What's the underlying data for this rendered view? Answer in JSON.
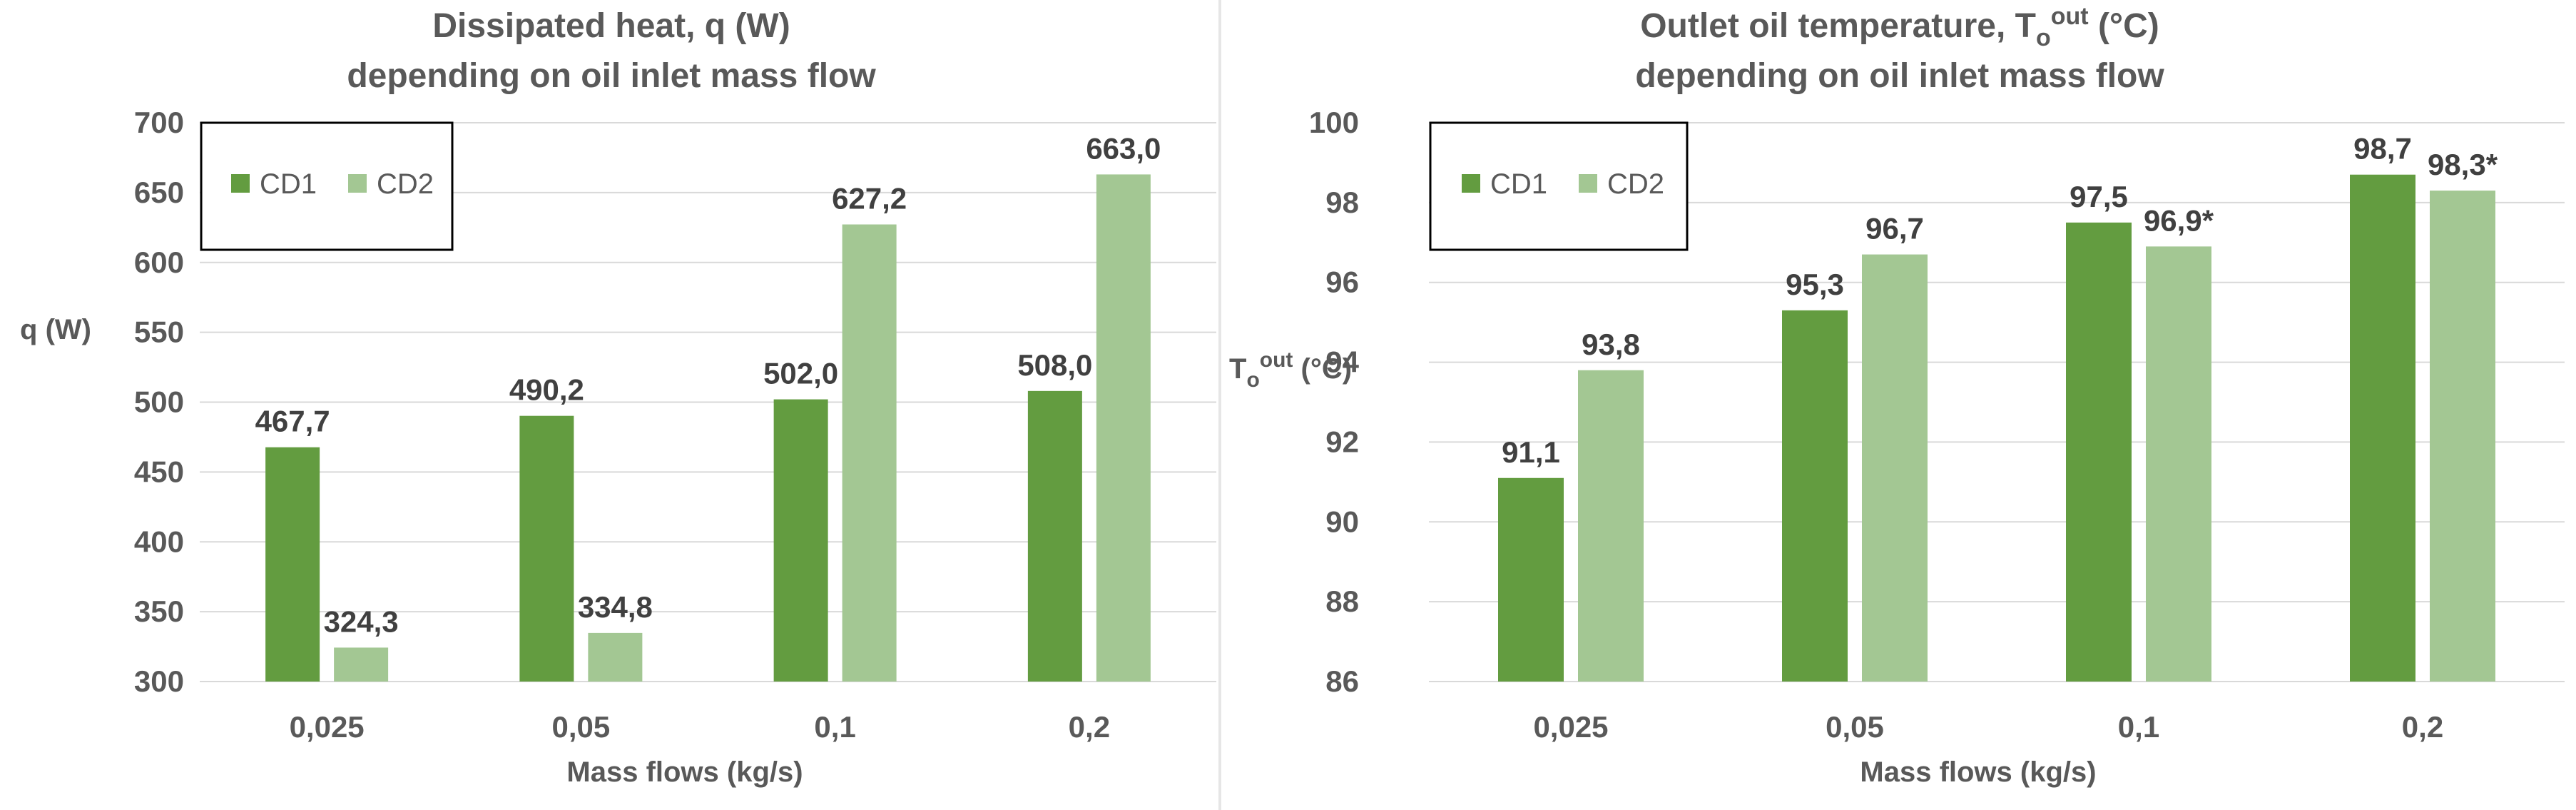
{
  "chart_data": [
    {
      "type": "bar",
      "title_line1": "Dissipated heat, q (W)",
      "title_line2": "depending on oil inlet mass flow",
      "xlabel": "Mass flows (kg/s)",
      "ylabel": "q (W)",
      "ylim": [
        300,
        700
      ],
      "ytick_step": 50,
      "yticks": [
        "300",
        "350",
        "400",
        "450",
        "500",
        "550",
        "600",
        "650",
        "700"
      ],
      "grid": true,
      "legend_position": "top-left",
      "categories": [
        "0,025",
        "0,05",
        "0,1",
        "0,2"
      ],
      "series": [
        {
          "name": "CD1",
          "color": "#639c40",
          "values": [
            467.7,
            490.2,
            502.0,
            508.0
          ],
          "labels": [
            "467,7",
            "490,2",
            "502,0",
            "508,0"
          ]
        },
        {
          "name": "CD2",
          "color": "#a3c793",
          "values": [
            324.3,
            334.8,
            627.2,
            663.0
          ],
          "labels": [
            "324,3",
            "334,8",
            "627,2",
            "663,0"
          ]
        }
      ]
    },
    {
      "type": "bar",
      "title_line1": "Outlet oil temperature, T",
      "title_sub": "o",
      "title_sup": "out",
      "title_unit": " (°C)",
      "title_line2": "depending on oil inlet mass flow",
      "xlabel": "Mass flows (kg/s)",
      "ylabel_main": "T",
      "ylabel_sub": "o",
      "ylabel_sup": "out",
      "ylabel_unit": " (°C)",
      "ylim": [
        86,
        100
      ],
      "ytick_step": 2,
      "yticks": [
        "86",
        "88",
        "90",
        "92",
        "94",
        "96",
        "98",
        "100"
      ],
      "grid": true,
      "legend_position": "top-left",
      "categories": [
        "0,025",
        "0,05",
        "0,1",
        "0,2"
      ],
      "series": [
        {
          "name": "CD1",
          "color": "#639c40",
          "values": [
            91.1,
            95.3,
            97.5,
            98.7
          ],
          "labels": [
            "91,1",
            "95,3",
            "97,5",
            "98,7"
          ]
        },
        {
          "name": "CD2",
          "color": "#a3c793",
          "values": [
            93.8,
            96.7,
            96.9,
            98.3
          ],
          "labels": [
            "93,8",
            "96,7",
            "96,9*",
            "98,3*"
          ]
        }
      ]
    }
  ]
}
